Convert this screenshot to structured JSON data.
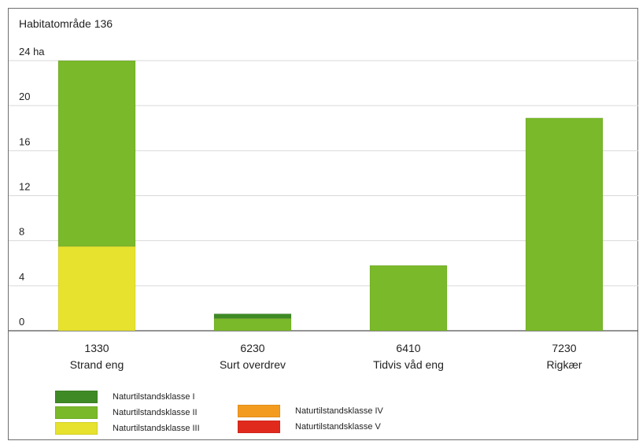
{
  "chart_data": {
    "type": "bar",
    "stacked": true,
    "title": "Habitatområde 136",
    "unit_label": "24 ha",
    "y_ticks": [
      0,
      4,
      8,
      12,
      16,
      20,
      24
    ],
    "y_tick_labels": [
      "0",
      "4",
      "8",
      "12",
      "16",
      "20",
      "24 ha"
    ],
    "ylim": [
      0,
      24
    ],
    "grid": true,
    "categories": [
      {
        "code": "1330",
        "name": "Strand eng"
      },
      {
        "code": "6230",
        "name": "Surt overdrev"
      },
      {
        "code": "6410",
        "name": "Tidvis våd eng"
      },
      {
        "code": "7230",
        "name": "Rigkær"
      }
    ],
    "series": [
      {
        "name": "Naturtilstandsklasse I",
        "color": "#3f8a25",
        "values": [
          0,
          0.4,
          0,
          0
        ]
      },
      {
        "name": "Naturtilstandsklasse II",
        "color": "#7ab929",
        "values": [
          16.5,
          1.1,
          5.8,
          18.9
        ]
      },
      {
        "name": "Naturtilstandsklasse III",
        "color": "#e6e22d",
        "values": [
          7.5,
          0,
          0,
          0
        ]
      },
      {
        "name": "Naturtilstandsklasse IV",
        "color": "#f39b1f",
        "values": [
          0,
          0,
          0,
          0
        ]
      },
      {
        "name": "Naturtilstandsklasse V",
        "color": "#e12a1e",
        "values": [
          0,
          0,
          0,
          0
        ]
      }
    ],
    "legend_placement": "bottom-left"
  }
}
